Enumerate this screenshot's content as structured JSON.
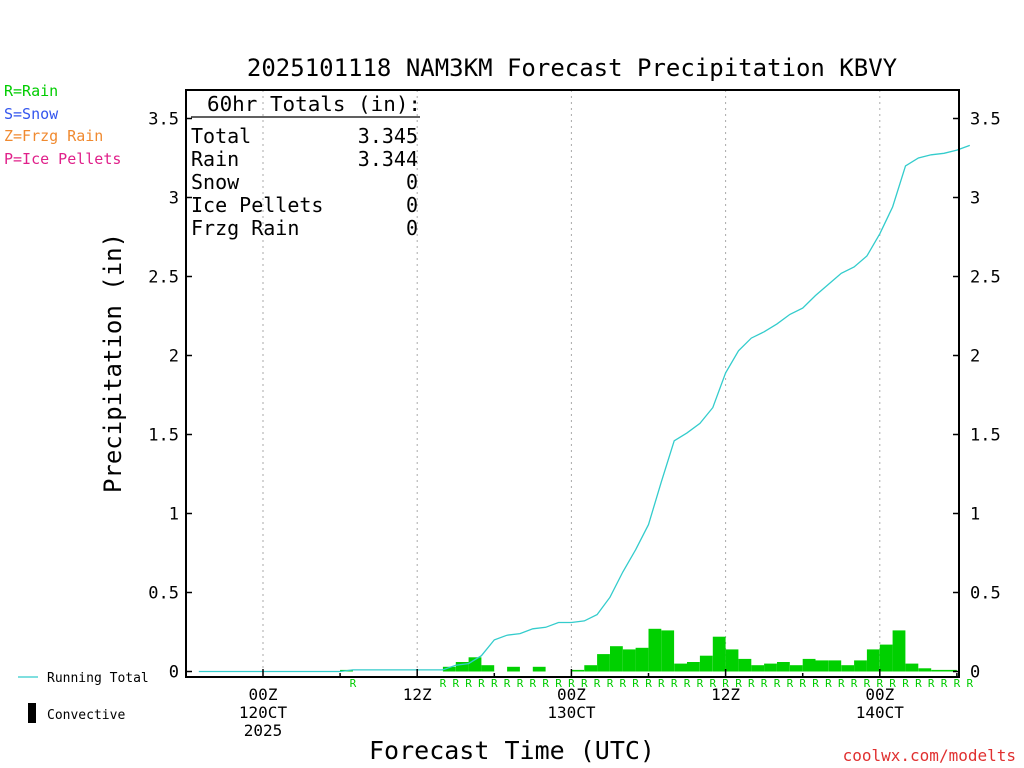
{
  "chart_data": {
    "type": "bar",
    "title": "2025101118 NAM3KM Forecast Precipitation KBVY",
    "xlabel": "Forecast Time (UTC)",
    "ylabel": "Precipitation (in)",
    "ylim": [
      0,
      3.65
    ],
    "y_ticks": [
      0,
      0.5,
      1,
      1.5,
      2,
      2.5,
      3,
      3.5
    ],
    "y_tick_labels": [
      "0",
      "0.5",
      "1",
      "1.5",
      "2",
      "2.5",
      "3",
      "3.5"
    ],
    "xlim_hours": [
      -5,
      55
    ],
    "x_ticks": [
      {
        "hour": 0,
        "lines": [
          "00Z",
          "120CT",
          "2025"
        ]
      },
      {
        "hour": 12,
        "lines": [
          "12Z"
        ]
      },
      {
        "hour": 24,
        "lines": [
          "00Z",
          "130CT"
        ]
      },
      {
        "hour": 36,
        "lines": [
          "12Z"
        ]
      },
      {
        "hour": 48,
        "lines": [
          "00Z",
          "140CT"
        ]
      }
    ],
    "totals_box": {
      "header": "60hr Totals (in):",
      "rows": [
        {
          "label": "Total",
          "value": "3.345"
        },
        {
          "label": "Rain",
          "value": "3.344"
        },
        {
          "label": "Snow",
          "value": "0"
        },
        {
          "label": "Ice Pellets",
          "value": "0"
        },
        {
          "label": "Frzg Rain",
          "value": "0"
        }
      ]
    },
    "legend": [
      {
        "text": "R=Rain",
        "color": "#00cc00"
      },
      {
        "text": "S=Snow",
        "color": "#3355ee"
      },
      {
        "text": "Z=Frzg Rain",
        "color": "#f08a30"
      },
      {
        "text": "P=Ice Pellets",
        "color": "#e0208a"
      }
    ],
    "bottom_legend": {
      "running_total": "Running Total",
      "convective": "Convective"
    },
    "series": [
      {
        "name": "Hourly Rain",
        "color": "#00d000",
        "bars": [
          {
            "hour": 7,
            "value": 0.01
          },
          {
            "hour": 15,
            "value": 0.03
          },
          {
            "hour": 16,
            "value": 0.06
          },
          {
            "hour": 17,
            "value": 0.09
          },
          {
            "hour": 18,
            "value": 0.04
          },
          {
            "hour": 20,
            "value": 0.03
          },
          {
            "hour": 22,
            "value": 0.03
          },
          {
            "hour": 25,
            "value": 0.01
          },
          {
            "hour": 26,
            "value": 0.04
          },
          {
            "hour": 27,
            "value": 0.11
          },
          {
            "hour": 28,
            "value": 0.16
          },
          {
            "hour": 29,
            "value": 0.14
          },
          {
            "hour": 30,
            "value": 0.15
          },
          {
            "hour": 31,
            "value": 0.27
          },
          {
            "hour": 32,
            "value": 0.26
          },
          {
            "hour": 33,
            "value": 0.05
          },
          {
            "hour": 34,
            "value": 0.06
          },
          {
            "hour": 35,
            "value": 0.1
          },
          {
            "hour": 36,
            "value": 0.22
          },
          {
            "hour": 37,
            "value": 0.14
          },
          {
            "hour": 38,
            "value": 0.08
          },
          {
            "hour": 39,
            "value": 0.04
          },
          {
            "hour": 40,
            "value": 0.05
          },
          {
            "hour": 41,
            "value": 0.06
          },
          {
            "hour": 42,
            "value": 0.04
          },
          {
            "hour": 43,
            "value": 0.08
          },
          {
            "hour": 44,
            "value": 0.07
          },
          {
            "hour": 45,
            "value": 0.07
          },
          {
            "hour": 46,
            "value": 0.04
          },
          {
            "hour": 47,
            "value": 0.07
          },
          {
            "hour": 48,
            "value": 0.14
          },
          {
            "hour": 49,
            "value": 0.17
          },
          {
            "hour": 50,
            "value": 0.26
          },
          {
            "hour": 51,
            "value": 0.05
          },
          {
            "hour": 52,
            "value": 0.02
          },
          {
            "hour": 53,
            "value": 0.01
          },
          {
            "hour": 54,
            "value": 0.01
          }
        ]
      },
      {
        "name": "Running Total",
        "color": "#33cccc",
        "points": [
          [
            -5,
            0
          ],
          [
            0,
            0
          ],
          [
            6,
            0
          ],
          [
            7,
            0.01
          ],
          [
            14,
            0.01
          ],
          [
            15,
            0.04
          ],
          [
            16,
            0.05
          ],
          [
            17,
            0.1
          ],
          [
            18,
            0.2
          ],
          [
            19,
            0.23
          ],
          [
            20,
            0.24
          ],
          [
            21,
            0.27
          ],
          [
            22,
            0.28
          ],
          [
            23,
            0.31
          ],
          [
            24,
            0.31
          ],
          [
            25,
            0.32
          ],
          [
            26,
            0.36
          ],
          [
            27,
            0.47
          ],
          [
            28,
            0.63
          ],
          [
            29,
            0.77
          ],
          [
            30,
            0.93
          ],
          [
            31,
            1.2
          ],
          [
            32,
            1.46
          ],
          [
            33,
            1.51
          ],
          [
            34,
            1.57
          ],
          [
            35,
            1.67
          ],
          [
            36,
            1.89
          ],
          [
            37,
            2.03
          ],
          [
            38,
            2.11
          ],
          [
            39,
            2.15
          ],
          [
            40,
            2.2
          ],
          [
            41,
            2.26
          ],
          [
            42,
            2.3
          ],
          [
            43,
            2.38
          ],
          [
            44,
            2.45
          ],
          [
            45,
            2.52
          ],
          [
            46,
            2.56
          ],
          [
            47,
            2.63
          ],
          [
            48,
            2.77
          ],
          [
            49,
            2.94
          ],
          [
            50,
            3.2
          ],
          [
            51,
            3.25
          ],
          [
            52,
            3.27
          ],
          [
            53,
            3.28
          ],
          [
            54,
            3.3
          ],
          [
            55,
            3.33
          ]
        ]
      }
    ],
    "ptype_markers": {
      "letter": "R",
      "color": "#00cc00",
      "hours": [
        7,
        14,
        15,
        16,
        17,
        18,
        19,
        20,
        21,
        22,
        23,
        24,
        25,
        26,
        27,
        28,
        29,
        30,
        31,
        32,
        33,
        34,
        35,
        36,
        37,
        38,
        39,
        40,
        41,
        42,
        43,
        44,
        45,
        46,
        47,
        48,
        49,
        50,
        51,
        52,
        53,
        54,
        55
      ]
    }
  },
  "watermark": "coolwx.com/modelts",
  "colors": {
    "rain_bar": "#00d000",
    "running_total": "#33cccc",
    "axis": "#000000",
    "grid": "#aaaaaa",
    "watermark": "#e03030"
  }
}
